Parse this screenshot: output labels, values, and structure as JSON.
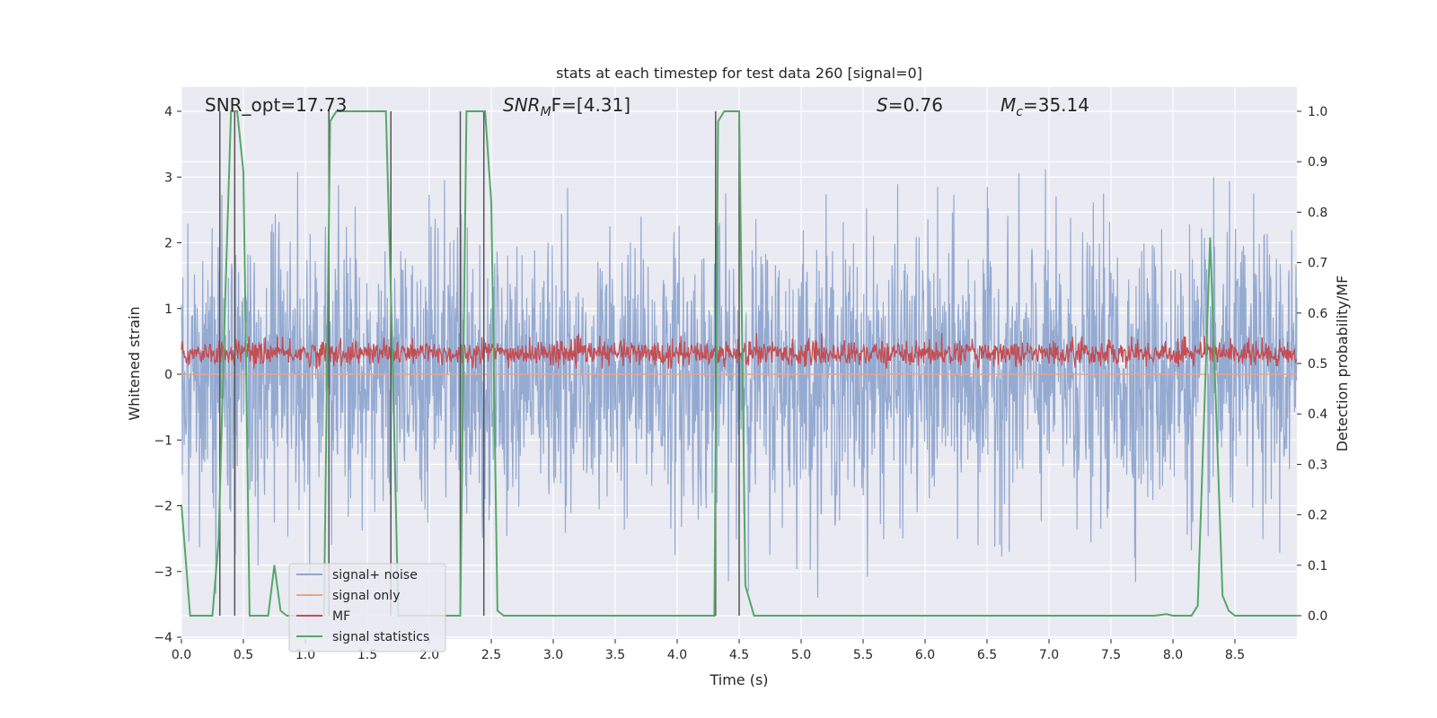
{
  "chart_data": {
    "type": "line",
    "title": "stats at each timestep for test data 260 [signal=0]",
    "xlabel": "Time (s)",
    "ylabel_left": "Whitened strain",
    "ylabel_right": "Detection probability/MF",
    "xlim": [
      0.0,
      9.0
    ],
    "ylim_left": [
      -4.0,
      4.0
    ],
    "ylim_right": [
      0.0,
      1.0
    ],
    "xticks": [
      0.0,
      0.5,
      1.0,
      1.5,
      2.0,
      2.5,
      3.0,
      3.5,
      4.0,
      4.5,
      5.0,
      5.5,
      6.0,
      6.5,
      7.0,
      7.5,
      8.0,
      8.5
    ],
    "xtick_labels": [
      "0.0",
      "0.5",
      "1.0",
      "1.5",
      "2.0",
      "2.5",
      "3.0",
      "3.5",
      "4.0",
      "4.5",
      "5.0",
      "5.5",
      "6.0",
      "6.5",
      "7.0",
      "7.5",
      "8.0",
      "8.5"
    ],
    "yticks_left": [
      -4,
      -3,
      -2,
      -1,
      0,
      1,
      2,
      3,
      4
    ],
    "ytick_labels_left": [
      "−4",
      "−3",
      "−2",
      "−1",
      "0",
      "1",
      "2",
      "3",
      "4"
    ],
    "yticks_right": [
      0.0,
      0.1,
      0.2,
      0.3,
      0.4,
      0.5,
      0.6,
      0.7,
      0.8,
      0.9,
      1.0
    ],
    "ytick_labels_right": [
      "0.0",
      "0.1",
      "0.2",
      "0.3",
      "0.4",
      "0.5",
      "0.6",
      "0.7",
      "0.8",
      "0.9",
      "1.0"
    ],
    "grid": true,
    "legend_position": "lower-left",
    "annotations": {
      "snr_opt": "SNR_opt=17.73",
      "snr_mf_main": "SNR",
      "snr_mf_sub": "M",
      "snr_mf_rest": "F=[4.31]",
      "s_var": "S",
      "s_rest": "=0.76",
      "mc_main": "M",
      "mc_sub": "c",
      "mc_rest": "=35.14"
    },
    "series": [
      {
        "name": "signal+ noise",
        "color": "#8fa6cf",
        "axis": "left",
        "style": "dense noise",
        "mean": 0.0,
        "approx_std": 1.0,
        "approx_range": [
          -3.4,
          3.8
        ]
      },
      {
        "name": "signal only",
        "color": "#e8a58a",
        "axis": "left",
        "style": "flat line",
        "value": 0.0
      },
      {
        "name": "MF",
        "color": "#c44e52",
        "axis": "right",
        "style": "dense noise",
        "approx_mean": 0.52,
        "approx_range": [
          0.49,
          0.56
        ]
      },
      {
        "name": "signal statistics",
        "color": "#55a868",
        "axis": "right",
        "x": [
          0.0,
          0.07,
          0.25,
          0.3,
          0.35,
          0.4,
          0.45,
          0.5,
          0.55,
          0.6,
          0.7,
          0.75,
          0.8,
          0.85,
          1.15,
          1.2,
          1.25,
          1.3,
          1.65,
          1.7,
          1.75,
          1.8,
          2.2,
          2.25,
          2.3,
          2.35,
          2.45,
          2.5,
          2.55,
          2.6,
          2.7,
          4.3,
          4.33,
          4.38,
          4.5,
          4.55,
          4.62,
          7.85,
          7.95,
          8.0,
          8.15,
          8.2,
          8.3,
          8.4,
          8.45,
          8.5,
          8.6,
          9.0
        ],
        "values": [
          0.22,
          0.0,
          0.0,
          0.15,
          0.6,
          1.0,
          1.0,
          0.88,
          0.0,
          0.0,
          0.0,
          0.1,
          0.01,
          0.0,
          0.0,
          0.98,
          1.0,
          1.0,
          1.0,
          0.55,
          0.0,
          0.0,
          0.0,
          0.0,
          1.0,
          1.0,
          1.0,
          0.82,
          0.01,
          0.0,
          0.0,
          0.0,
          0.98,
          1.0,
          1.0,
          0.06,
          0.0,
          0.0,
          0.003,
          0.0,
          0.0,
          0.02,
          0.75,
          0.04,
          0.01,
          0.0,
          0.0,
          0.0
        ]
      }
    ],
    "vertical_markers": [
      0.31,
      0.43,
      1.19,
      1.69,
      2.25,
      2.44,
      4.31,
      4.5
    ],
    "vertical_marker_color": "#555555"
  }
}
